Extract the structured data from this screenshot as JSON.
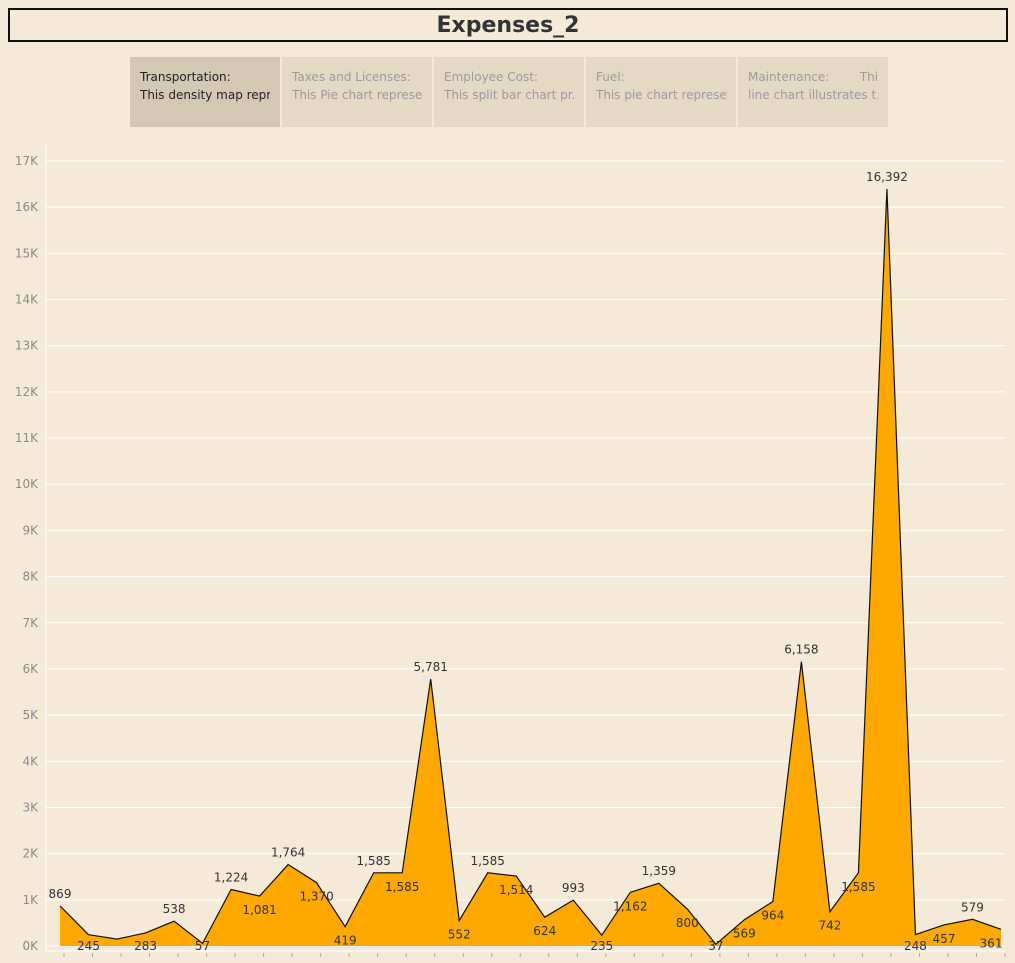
{
  "dashboard": {
    "title": "Expenses_2",
    "story_points": [
      {
        "caption": "Transportation:",
        "desc": "This density map repr..",
        "active": true
      },
      {
        "caption": "Taxes and Licenses:",
        "desc": "This Pie chart represe..",
        "active": false
      },
      {
        "caption": "Employee Cost:",
        "desc": "This split bar chart pr..",
        "active": false
      },
      {
        "caption": "Fuel:",
        "desc": "This pie chart represe..",
        "active": false
      },
      {
        "caption": "Maintenance:        This",
        "desc": "line chart illustrates t..",
        "active": false
      }
    ]
  },
  "colors": {
    "area": "#ffa800",
    "line": "#111111",
    "grid": "#ffffff",
    "background": "#f5e9d8"
  },
  "chart_data": {
    "type": "area",
    "title": "",
    "xlabel": "",
    "ylabel": "",
    "ylim": [
      0,
      17000
    ],
    "yticks": [
      0,
      1000,
      2000,
      3000,
      4000,
      5000,
      6000,
      7000,
      8000,
      9000,
      10000,
      11000,
      12000,
      13000,
      14000,
      15000,
      16000,
      17000
    ],
    "ytick_labels": [
      "0K",
      "1K",
      "2K",
      "3K",
      "4K",
      "5K",
      "6K",
      "7K",
      "8K",
      "9K",
      "10K",
      "11K",
      "12K",
      "13K",
      "14K",
      "15K",
      "16K",
      "17K"
    ],
    "grid": true,
    "values": [
      869,
      245,
      150,
      283,
      538,
      57,
      1224,
      1081,
      1764,
      1370,
      419,
      1585,
      1585,
      5781,
      552,
      1585,
      1514,
      624,
      993,
      235,
      1162,
      1359,
      800,
      37,
      569,
      964,
      6158,
      742,
      1585,
      16392,
      248,
      457,
      579,
      361
    ],
    "labels": [
      "869",
      "245",
      "",
      "283",
      "538",
      "57",
      "1,224",
      "1,081",
      "1,764",
      "1,370",
      "419",
      "1,585",
      "1,585",
      "5,781",
      "552",
      "1,585",
      "1,514",
      "624",
      "993",
      "235",
      "1,162",
      "1,359",
      "800",
      "37",
      "569",
      "964",
      "6,158",
      "742",
      "1,585",
      "16,392",
      "248",
      "457",
      "579",
      "361"
    ]
  }
}
